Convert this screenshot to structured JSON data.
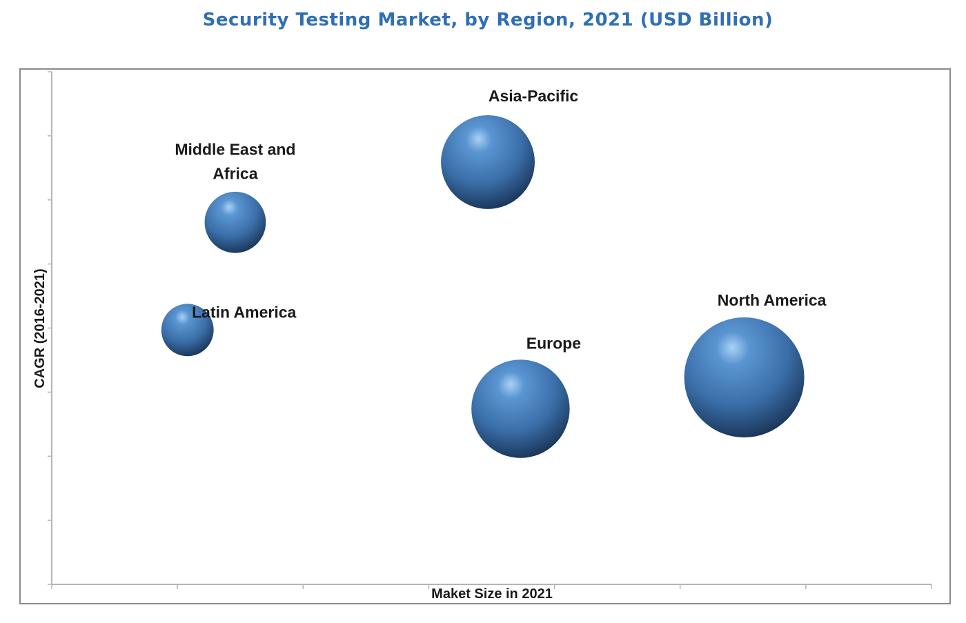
{
  "chart_data": {
    "type": "scatter",
    "subtype": "bubble",
    "title": "Security Testing Market, by Region, 2021 (USD Billion)",
    "xlabel": "Maket Size in 2021",
    "ylabel": "CAGR (2016-2021)",
    "xlim": [
      0,
      7
    ],
    "ylim": [
      0,
      8
    ],
    "x_ticks_count": 7,
    "y_ticks_count": 8,
    "tick_labels_shown": false,
    "grid": false,
    "legend": "none",
    "bubble_color": "#3a72b0",
    "series": [
      {
        "name": "Asia-Pacific",
        "label_lines": [
          "Asia-Pacific"
        ],
        "x": 3.47,
        "y": 6.59,
        "size": 0.61
      },
      {
        "name": "Middle East and Africa",
        "label_lines": [
          "Middle East and",
          "Africa"
        ],
        "x": 1.46,
        "y": 5.65,
        "size": 0.26
      },
      {
        "name": "Latin America",
        "label_lines": [
          "Latin America"
        ],
        "x": 1.08,
        "y": 3.97,
        "size": 0.19
      },
      {
        "name": "Europe",
        "label_lines": [
          "Europe"
        ],
        "x": 3.73,
        "y": 2.74,
        "size": 0.67
      },
      {
        "name": "North America",
        "label_lines": [
          "North America"
        ],
        "x": 5.51,
        "y": 3.23,
        "size": 1.0
      }
    ]
  }
}
